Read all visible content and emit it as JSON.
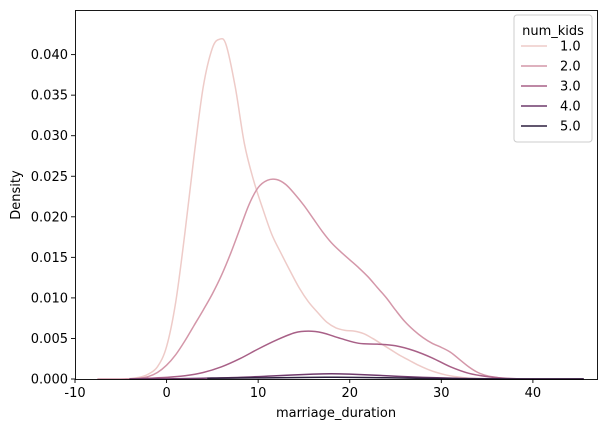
{
  "chart_data": {
    "type": "line",
    "subtype": "kde",
    "title": "",
    "xlabel": "marriage_duration",
    "ylabel": "Density",
    "xlim": [
      -10,
      47
    ],
    "ylim": [
      0,
      0.0455
    ],
    "xticks": [
      -10,
      0,
      10,
      20,
      30,
      40
    ],
    "yticks": [
      0.0,
      0.005,
      0.01,
      0.015,
      0.02,
      0.025,
      0.03,
      0.035,
      0.04
    ],
    "ytick_labels": [
      "0.000",
      "0.005",
      "0.010",
      "0.015",
      "0.020",
      "0.025",
      "0.030",
      "0.035",
      "0.040"
    ],
    "legend": {
      "title": "num_kids",
      "position": "top-right"
    },
    "series": [
      {
        "name": "1.0",
        "color": "#eecbc8",
        "points": [
          [
            -4.5,
            0
          ],
          [
            -3,
            0.0002
          ],
          [
            -2,
            0.0006
          ],
          [
            -1,
            0.0015
          ],
          [
            0,
            0.004
          ],
          [
            1,
            0.0095
          ],
          [
            2,
            0.018
          ],
          [
            3,
            0.0275
          ],
          [
            4,
            0.036
          ],
          [
            5,
            0.0408
          ],
          [
            5.8,
            0.0419
          ],
          [
            6.5,
            0.0412
          ],
          [
            7.5,
            0.036
          ],
          [
            8.5,
            0.029
          ],
          [
            9.5,
            0.0245
          ],
          [
            10.5,
            0.021
          ],
          [
            11.5,
            0.0178
          ],
          [
            12.5,
            0.0155
          ],
          [
            13.5,
            0.0133
          ],
          [
            14.5,
            0.0112
          ],
          [
            15.5,
            0.0095
          ],
          [
            16.5,
            0.0082
          ],
          [
            17.5,
            0.007
          ],
          [
            18.5,
            0.0063
          ],
          [
            19.5,
            0.006
          ],
          [
            20.5,
            0.0059
          ],
          [
            21.5,
            0.0056
          ],
          [
            22.5,
            0.005
          ],
          [
            23.5,
            0.0043
          ],
          [
            24.5,
            0.0036
          ],
          [
            25.5,
            0.0029
          ],
          [
            26.5,
            0.0023
          ],
          [
            27.5,
            0.0017
          ],
          [
            28.5,
            0.0012
          ],
          [
            29.5,
            0.0008
          ],
          [
            30.5,
            0.0005
          ],
          [
            31.5,
            0.0003
          ],
          [
            33,
            0.0001
          ],
          [
            35,
            0
          ]
        ]
      },
      {
        "name": "2.0",
        "color": "#d497a9",
        "points": [
          [
            -7.5,
            0
          ],
          [
            -5,
            0
          ],
          [
            -3,
            0.0001
          ],
          [
            -2,
            0.0003
          ],
          [
            -1,
            0.0008
          ],
          [
            0,
            0.0017
          ],
          [
            1,
            0.003
          ],
          [
            2,
            0.0047
          ],
          [
            3,
            0.0066
          ],
          [
            4,
            0.0085
          ],
          [
            5,
            0.0105
          ],
          [
            6,
            0.0128
          ],
          [
            7,
            0.0155
          ],
          [
            8,
            0.0185
          ],
          [
            9,
            0.0215
          ],
          [
            10,
            0.0236
          ],
          [
            11,
            0.0245
          ],
          [
            12,
            0.0246
          ],
          [
            13,
            0.024
          ],
          [
            14,
            0.0228
          ],
          [
            15,
            0.0214
          ],
          [
            16,
            0.0198
          ],
          [
            17,
            0.0182
          ],
          [
            18,
            0.0168
          ],
          [
            19,
            0.0157
          ],
          [
            20,
            0.0147
          ],
          [
            21,
            0.0137
          ],
          [
            22,
            0.0126
          ],
          [
            23,
            0.0113
          ],
          [
            24,
            0.01
          ],
          [
            25,
            0.0085
          ],
          [
            26,
            0.0071
          ],
          [
            27,
            0.006
          ],
          [
            28,
            0.0051
          ],
          [
            29,
            0.0044
          ],
          [
            30,
            0.0039
          ],
          [
            31,
            0.0033
          ],
          [
            32,
            0.0024
          ],
          [
            33,
            0.0015
          ],
          [
            34,
            0.0008
          ],
          [
            35,
            0.0004
          ],
          [
            36,
            0.0002
          ],
          [
            38,
            0
          ],
          [
            45.5,
            0
          ]
        ]
      },
      {
        "name": "3.0",
        "color": "#a86087",
        "points": [
          [
            -4,
            0
          ],
          [
            -2,
            0.0001
          ],
          [
            0,
            0.0002
          ],
          [
            2,
            0.0004
          ],
          [
            4,
            0.0008
          ],
          [
            6,
            0.0015
          ],
          [
            8,
            0.0025
          ],
          [
            10,
            0.0037
          ],
          [
            12,
            0.0048
          ],
          [
            14,
            0.0057
          ],
          [
            15.5,
            0.0059
          ],
          [
            17,
            0.0057
          ],
          [
            19,
            0.005
          ],
          [
            21,
            0.0044
          ],
          [
            23,
            0.0043
          ],
          [
            25,
            0.0041
          ],
          [
            27,
            0.0035
          ],
          [
            29,
            0.0026
          ],
          [
            31,
            0.0015
          ],
          [
            33,
            0.0007
          ],
          [
            35,
            0.0003
          ],
          [
            37,
            0.0001
          ],
          [
            40,
            0
          ],
          [
            45.5,
            0
          ]
        ]
      },
      {
        "name": "4.0",
        "color": "#6f3a6b",
        "points": [
          [
            -4,
            0
          ],
          [
            0,
            2e-05
          ],
          [
            4,
            0.0001
          ],
          [
            8,
            0.0002
          ],
          [
            12,
            0.0004
          ],
          [
            16,
            0.0006
          ],
          [
            18,
            0.00065
          ],
          [
            20,
            0.0006
          ],
          [
            24,
            0.0004
          ],
          [
            28,
            0.0002
          ],
          [
            32,
            8e-05
          ],
          [
            36,
            2e-05
          ],
          [
            40,
            0
          ],
          [
            45.5,
            0
          ]
        ]
      },
      {
        "name": "5.0",
        "color": "#2d1e3e",
        "points": [
          [
            4.5,
            0.0001
          ],
          [
            8,
            0.00012
          ],
          [
            12,
            0.00016
          ],
          [
            16,
            0.0002
          ],
          [
            18,
            0.00022
          ],
          [
            20,
            0.0002
          ],
          [
            24,
            0.00015
          ],
          [
            28,
            8e-05
          ],
          [
            32,
            3e-05
          ],
          [
            36,
            1e-05
          ],
          [
            40,
            0
          ],
          [
            45.5,
            0
          ]
        ]
      }
    ]
  }
}
